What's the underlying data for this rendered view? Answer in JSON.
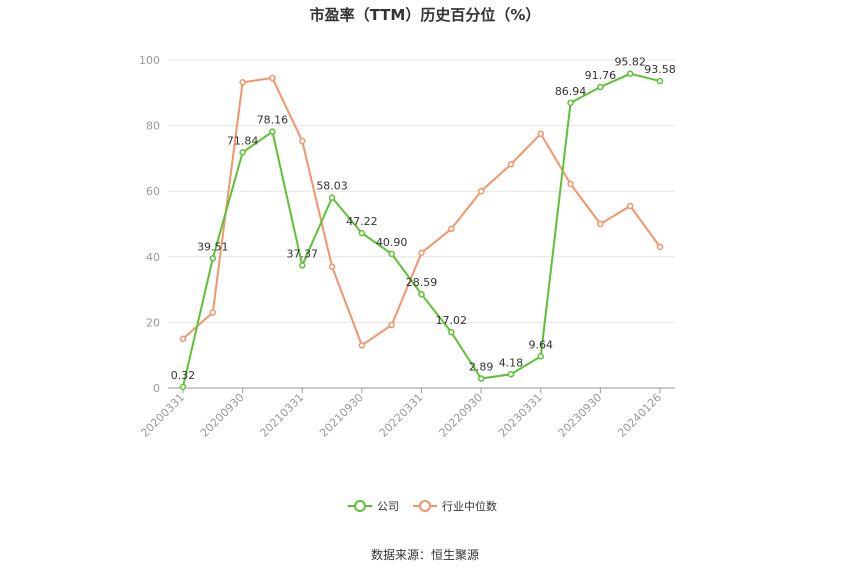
{
  "chart_data": {
    "type": "line",
    "title": "市盈率（TTM）历史百分位（%）",
    "xlabel": "",
    "ylabel": "",
    "ylim": [
      0,
      100
    ],
    "yticks": [
      0,
      20,
      40,
      60,
      80,
      100
    ],
    "grid": true,
    "legend_position": "bottom",
    "x_tick_labels": [
      "20200331",
      "20200930",
      "20210331",
      "20210930",
      "20220331",
      "20220930",
      "20230331",
      "20230930",
      "20240126"
    ],
    "x_tick_indices": [
      0,
      2,
      4,
      6,
      8,
      10,
      12,
      14,
      16
    ],
    "x_count": 17,
    "series": [
      {
        "name": "公司",
        "color": "#5cc234",
        "values": [
          0.32,
          39.51,
          71.84,
          78.16,
          37.37,
          58.03,
          47.22,
          40.9,
          28.59,
          17.02,
          2.89,
          4.18,
          9.64,
          86.94,
          91.76,
          95.82,
          93.58
        ],
        "labels": [
          "0.32",
          "39.51",
          "71.84",
          "78.16",
          "37.37",
          "58.03",
          "47.22",
          "40.90",
          "28.59",
          "17.02",
          "2.89",
          "4.18",
          "9.64",
          "86.94",
          "91.76",
          "95.82",
          "93.58"
        ]
      },
      {
        "name": "行业中位数",
        "color": "#f4946b",
        "values": [
          15.0,
          23.0,
          93.2,
          94.5,
          75.3,
          37.0,
          13.0,
          19.2,
          41.2,
          48.5,
          60.0,
          68.2,
          77.5,
          62.2,
          50.0,
          55.5,
          43.0
        ]
      }
    ]
  },
  "footer": {
    "source": "数据来源：恒生聚源"
  }
}
